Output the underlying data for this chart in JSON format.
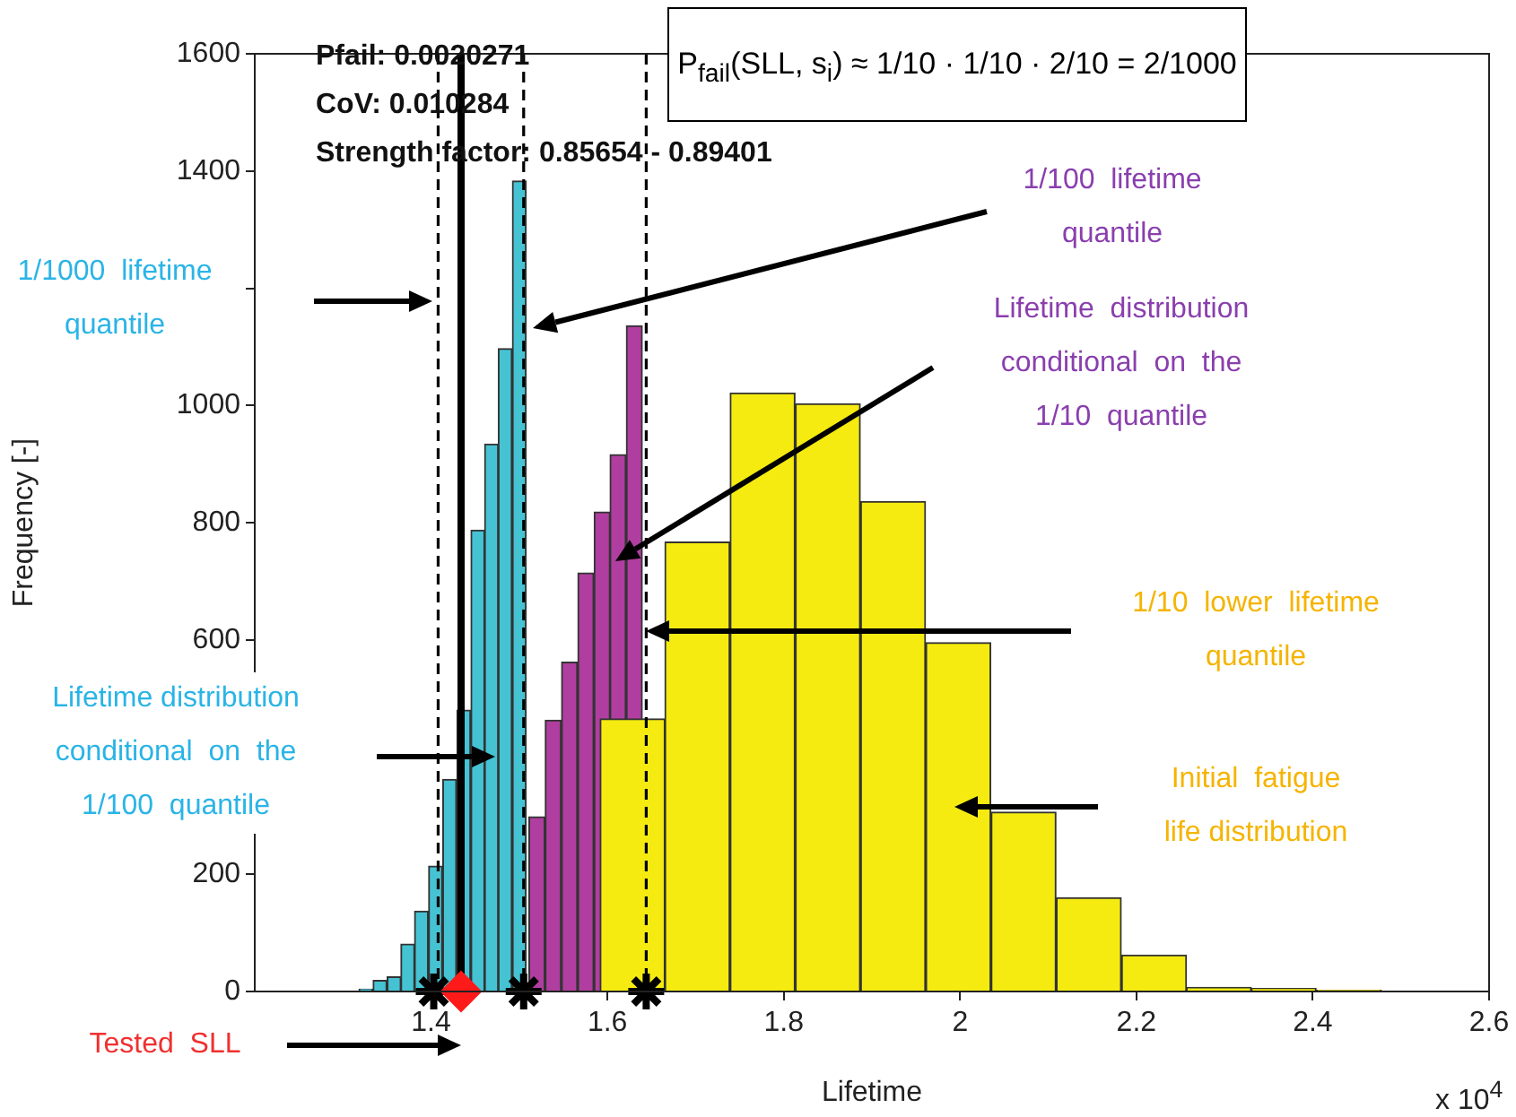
{
  "chart_data": {
    "type": "histogram",
    "title": "P$_{fail}$(SLL, s$_{i}$) ≈ 1/10 · 1/10 · 2/10 = 2/1000",
    "xlabel": "Lifetime",
    "ylabel": "Frequency [-]",
    "xlim": [
      1.2,
      2.6
    ],
    "xticks": [
      1.4,
      1.6,
      1.8,
      2,
      2.2,
      2.4,
      2.6
    ],
    "ylim": [
      0,
      1600
    ],
    "yticks": [
      0,
      200,
      {
        "value": 400,
        "label": null
      },
      600,
      800,
      1000,
      {
        "value": 1200,
        "label": null
      },
      1400,
      1600
    ],
    "grid": false,
    "legend": false,
    "series": [
      {
        "color": "#f5eb10",
        "bins": [
          1.592,
          1.665,
          1.739,
          1.813,
          1.887,
          1.961,
          2.035,
          2.109,
          2.183,
          2.257,
          2.33,
          2.404,
          2.478
        ],
        "values": [
          465,
          767,
          1021,
          1003,
          836,
          595,
          306,
          160,
          62,
          7,
          5,
          2
        ]
      },
      {
        "color": "#b03ea0",
        "bins": [
          1.511,
          1.529,
          1.548,
          1.566,
          1.585,
          1.603,
          1.621,
          1.64
        ],
        "values": [
          298,
          463,
          562,
          714,
          818,
          916,
          1136
        ]
      },
      {
        "color": "#45c3d3",
        "bins": [
          1.318,
          1.334,
          1.35,
          1.366,
          1.381,
          1.397,
          1.413,
          1.429,
          1.445,
          1.461,
          1.476,
          1.492,
          1.508
        ],
        "values": [
          4,
          19,
          25,
          81,
          137,
          214,
          362,
          480,
          787,
          934,
          1097,
          1383
        ]
      },
      {
        "type": "scatter",
        "color": "#000000",
        "x": [
          1.403,
          1.505,
          1.644
        ],
        "values": [
          0,
          0,
          0
        ]
      },
      {
        "type": "scatter",
        "color": "#ff1a1a",
        "marker": "diamond",
        "x": [
          1.434
        ],
        "values": [
          0
        ]
      }
    ],
    "ref_lines": [
      {
        "axis": "x",
        "value": 1.408,
        "color": "#000000",
        "line_style": "dashed"
      },
      {
        "axis": "x",
        "value": 1.434,
        "color": "#000000",
        "line_style": "solid"
      },
      {
        "axis": "x",
        "value": 1.505,
        "color": "#000000",
        "line_style": "dashed"
      },
      {
        "axis": "x",
        "value": 1.644,
        "color": "#000000",
        "line_style": "dashed"
      }
    ],
    "annotations": [
      "Pfail: 0.0020271",
      "CoV: 0.010284",
      "Strength factor: 0.85654 - 0.89401",
      "1/1000  lifetime\nquantile",
      "1/100  lifetime\nquantile",
      "Lifetime  distribution\nconditional  on  the\n1/10  quantile",
      "1/10  lower  lifetime\nquantile",
      "Initial  fatigue\nlife distribution",
      "Lifetime distribution\nconditional  on  the\n1/100  quantile",
      "Tested  SLL",
      "x 10$^{4}$"
    ]
  }
}
